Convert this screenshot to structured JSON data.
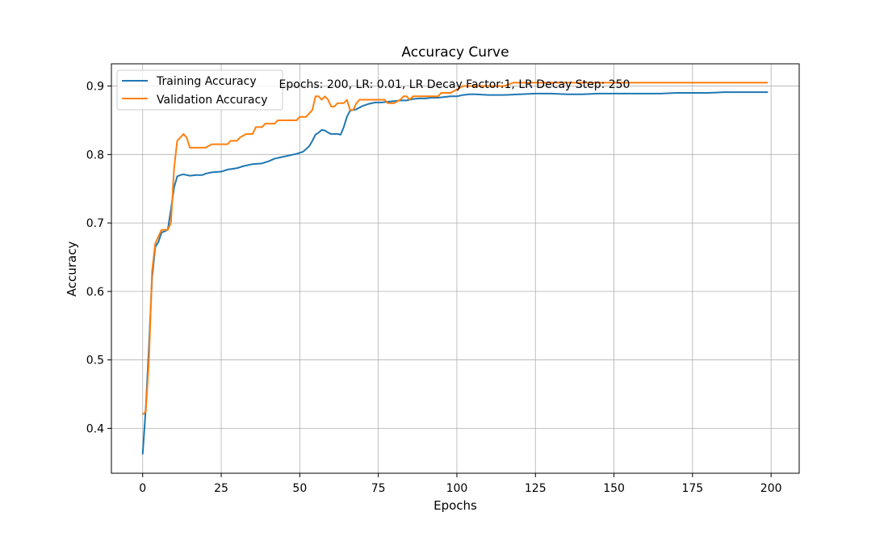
{
  "chart_data": {
    "type": "line",
    "title": "Accuracy Curve",
    "xlabel": "Epochs",
    "ylabel": "Accuracy",
    "annotation": "Epochs: 200, LR: 0.01, LR Decay Factor:1, LR Decay Step: 250",
    "xlim": [
      -9.95,
      208.95
    ],
    "ylim": [
      0.3345,
      0.9325
    ],
    "xticks": [
      0,
      25,
      50,
      75,
      100,
      125,
      150,
      175,
      200
    ],
    "yticks": [
      0.4,
      0.5,
      0.6,
      0.7,
      0.8,
      0.9
    ],
    "xtick_labels": [
      "0",
      "25",
      "50",
      "75",
      "100",
      "125",
      "150",
      "175",
      "200"
    ],
    "ytick_labels": [
      "0.4",
      "0.5",
      "0.6",
      "0.7",
      "0.8",
      "0.9"
    ],
    "grid": true,
    "legend_position": "upper-left",
    "series": [
      {
        "name": "Training Accuracy",
        "color": "#1f77b4",
        "points": [
          [
            0,
            0.362
          ],
          [
            1,
            0.43
          ],
          [
            2,
            0.52
          ],
          [
            3,
            0.62
          ],
          [
            4,
            0.665
          ],
          [
            5,
            0.672
          ],
          [
            6,
            0.686
          ],
          [
            7,
            0.688
          ],
          [
            8,
            0.69
          ],
          [
            9,
            0.72
          ],
          [
            10,
            0.752
          ],
          [
            11,
            0.768
          ],
          [
            12,
            0.77
          ],
          [
            13,
            0.771
          ],
          [
            14,
            0.77
          ],
          [
            15,
            0.769
          ],
          [
            17,
            0.77
          ],
          [
            19,
            0.77
          ],
          [
            20,
            0.772
          ],
          [
            22,
            0.774
          ],
          [
            25,
            0.775
          ],
          [
            27,
            0.778
          ],
          [
            30,
            0.78
          ],
          [
            32,
            0.783
          ],
          [
            35,
            0.786
          ],
          [
            38,
            0.787
          ],
          [
            40,
            0.79
          ],
          [
            42,
            0.794
          ],
          [
            45,
            0.797
          ],
          [
            47,
            0.799
          ],
          [
            49,
            0.801
          ],
          [
            51,
            0.804
          ],
          [
            53,
            0.812
          ],
          [
            54,
            0.82
          ],
          [
            55,
            0.829
          ],
          [
            56,
            0.832
          ],
          [
            57,
            0.836
          ],
          [
            58,
            0.835
          ],
          [
            59,
            0.832
          ],
          [
            60,
            0.83
          ],
          [
            62,
            0.83
          ],
          [
            63,
            0.829
          ],
          [
            64,
            0.84
          ],
          [
            65,
            0.855
          ],
          [
            66,
            0.864
          ],
          [
            68,
            0.866
          ],
          [
            70,
            0.871
          ],
          [
            72,
            0.874
          ],
          [
            74,
            0.876
          ],
          [
            76,
            0.876
          ],
          [
            78,
            0.877
          ],
          [
            80,
            0.878
          ],
          [
            82,
            0.879
          ],
          [
            84,
            0.879
          ],
          [
            86,
            0.881
          ],
          [
            88,
            0.882
          ],
          [
            90,
            0.882
          ],
          [
            92,
            0.883
          ],
          [
            94,
            0.883
          ],
          [
            96,
            0.884
          ],
          [
            98,
            0.885
          ],
          [
            100,
            0.885
          ],
          [
            102,
            0.887
          ],
          [
            104,
            0.888
          ],
          [
            106,
            0.888
          ],
          [
            110,
            0.887
          ],
          [
            115,
            0.887
          ],
          [
            120,
            0.888
          ],
          [
            125,
            0.889
          ],
          [
            130,
            0.889
          ],
          [
            135,
            0.888
          ],
          [
            140,
            0.888
          ],
          [
            145,
            0.889
          ],
          [
            150,
            0.889
          ],
          [
            155,
            0.889
          ],
          [
            160,
            0.889
          ],
          [
            165,
            0.889
          ],
          [
            170,
            0.89
          ],
          [
            175,
            0.89
          ],
          [
            180,
            0.89
          ],
          [
            185,
            0.891
          ],
          [
            190,
            0.891
          ],
          [
            195,
            0.891
          ],
          [
            199,
            0.891
          ]
        ]
      },
      {
        "name": "Validation Accuracy",
        "color": "#ff7f0e",
        "points": [
          [
            0,
            0.42
          ],
          [
            1,
            0.425
          ],
          [
            2,
            0.5
          ],
          [
            3,
            0.63
          ],
          [
            4,
            0.67
          ],
          [
            5,
            0.68
          ],
          [
            6,
            0.69
          ],
          [
            7,
            0.69
          ],
          [
            8,
            0.69
          ],
          [
            9,
            0.7
          ],
          [
            10,
            0.78
          ],
          [
            11,
            0.82
          ],
          [
            12,
            0.825
          ],
          [
            13,
            0.83
          ],
          [
            14,
            0.825
          ],
          [
            15,
            0.81
          ],
          [
            16,
            0.81
          ],
          [
            20,
            0.81
          ],
          [
            22,
            0.815
          ],
          [
            25,
            0.815
          ],
          [
            27,
            0.815
          ],
          [
            28,
            0.82
          ],
          [
            30,
            0.82
          ],
          [
            31,
            0.825
          ],
          [
            33,
            0.83
          ],
          [
            35,
            0.83
          ],
          [
            36,
            0.84
          ],
          [
            38,
            0.84
          ],
          [
            39,
            0.845
          ],
          [
            42,
            0.845
          ],
          [
            43,
            0.85
          ],
          [
            49,
            0.85
          ],
          [
            50,
            0.855
          ],
          [
            52,
            0.855
          ],
          [
            53,
            0.86
          ],
          [
            54,
            0.865
          ],
          [
            55,
            0.885
          ],
          [
            56,
            0.885
          ],
          [
            57,
            0.88
          ],
          [
            58,
            0.885
          ],
          [
            59,
            0.88
          ],
          [
            60,
            0.87
          ],
          [
            61,
            0.87
          ],
          [
            62,
            0.875
          ],
          [
            64,
            0.875
          ],
          [
            65,
            0.88
          ],
          [
            66,
            0.865
          ],
          [
            67,
            0.865
          ],
          [
            68,
            0.875
          ],
          [
            69,
            0.88
          ],
          [
            75,
            0.88
          ],
          [
            77,
            0.88
          ],
          [
            78,
            0.875
          ],
          [
            80,
            0.875
          ],
          [
            82,
            0.88
          ],
          [
            83,
            0.885
          ],
          [
            84,
            0.885
          ],
          [
            85,
            0.88
          ],
          [
            86,
            0.885
          ],
          [
            94,
            0.885
          ],
          [
            95,
            0.89
          ],
          [
            98,
            0.89
          ],
          [
            100,
            0.895
          ],
          [
            102,
            0.9
          ],
          [
            110,
            0.9
          ],
          [
            115,
            0.9
          ],
          [
            118,
            0.905
          ],
          [
            199,
            0.905
          ]
        ]
      }
    ]
  }
}
